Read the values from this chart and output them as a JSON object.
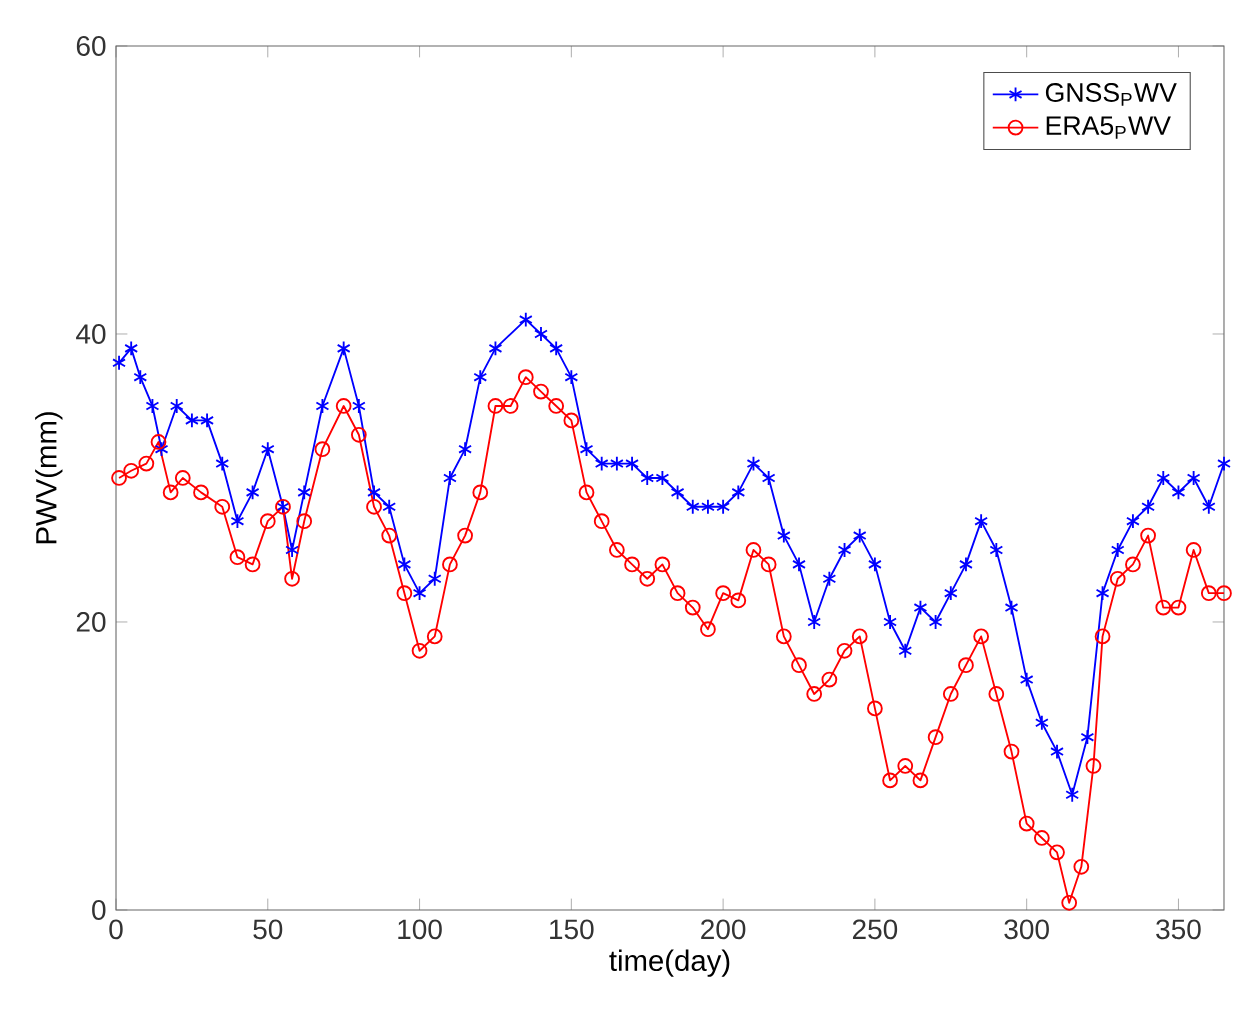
{
  "chart_data": {
    "type": "line",
    "xlabel": "time(day)",
    "ylabel": "PWV(mm)",
    "xlim": [
      0,
      365
    ],
    "ylim": [
      0,
      60
    ],
    "xticks": [
      0,
      50,
      100,
      150,
      200,
      250,
      300,
      350
    ],
    "yticks": [
      0,
      20,
      40,
      60
    ],
    "grid": false,
    "legend": "top right",
    "line_style": "solid",
    "series": [
      {
        "name": "GNSS$_{P}$WV",
        "color": "#0000ff",
        "marker": "cross",
        "x": [
          1,
          5,
          8,
          12,
          15,
          20,
          25,
          30,
          35,
          40,
          45,
          50,
          55,
          58,
          62,
          68,
          75,
          80,
          85,
          90,
          95,
          100,
          105,
          110,
          115,
          120,
          125,
          135,
          140,
          145,
          150,
          155,
          160,
          165,
          170,
          175,
          180,
          185,
          190,
          195,
          200,
          205,
          210,
          215,
          220,
          225,
          230,
          235,
          240,
          245,
          250,
          255,
          260,
          265,
          270,
          275,
          280,
          285,
          290,
          295,
          300,
          305,
          310,
          315,
          320,
          325,
          330,
          335,
          340,
          345,
          350,
          355,
          360,
          365
        ],
        "values": [
          38,
          39,
          37,
          35,
          32,
          35,
          34,
          34,
          31,
          27,
          29,
          32,
          28,
          25,
          29,
          35,
          39,
          35,
          29,
          28,
          24,
          22,
          23,
          30,
          32,
          37,
          39,
          41,
          40,
          39,
          37,
          32,
          31,
          31,
          31,
          30,
          30,
          29,
          28,
          28,
          28,
          29,
          31,
          30,
          26,
          24,
          20,
          23,
          25,
          26,
          24,
          20,
          18,
          21,
          20,
          22,
          24,
          27,
          25,
          21,
          16,
          13,
          11,
          8,
          12,
          22,
          25,
          27,
          28,
          30,
          29,
          30,
          28,
          31
        ]
      },
      {
        "name": "ERA5$_{P}$WV",
        "color": "#ff0000",
        "marker": "circle",
        "x": [
          1,
          5,
          10,
          14,
          18,
          22,
          28,
          35,
          40,
          45,
          50,
          55,
          58,
          62,
          68,
          75,
          80,
          85,
          90,
          95,
          100,
          105,
          110,
          115,
          120,
          125,
          130,
          135,
          140,
          145,
          150,
          155,
          160,
          165,
          170,
          175,
          180,
          185,
          190,
          195,
          200,
          205,
          210,
          215,
          220,
          225,
          230,
          235,
          240,
          245,
          250,
          255,
          260,
          265,
          270,
          275,
          280,
          285,
          290,
          295,
          300,
          305,
          310,
          314,
          318,
          322,
          325,
          330,
          335,
          340,
          345,
          350,
          355,
          360,
          365
        ],
        "values": [
          30,
          30.5,
          31,
          32.5,
          29,
          30,
          29,
          28,
          24.5,
          24,
          27,
          28,
          23,
          27,
          32,
          35,
          33,
          28,
          26,
          22,
          18,
          19,
          24,
          26,
          29,
          35,
          35,
          37,
          36,
          35,
          34,
          29,
          27,
          25,
          24,
          23,
          24,
          22,
          21,
          19.5,
          22,
          21.5,
          25,
          24,
          19,
          17,
          15,
          16,
          18,
          19,
          14,
          9,
          10,
          9,
          12,
          15,
          17,
          19,
          15,
          11,
          6,
          5,
          4,
          0.5,
          3,
          10,
          19,
          23,
          24,
          26,
          21,
          21,
          25,
          22,
          22
        ]
      }
    ]
  }
}
